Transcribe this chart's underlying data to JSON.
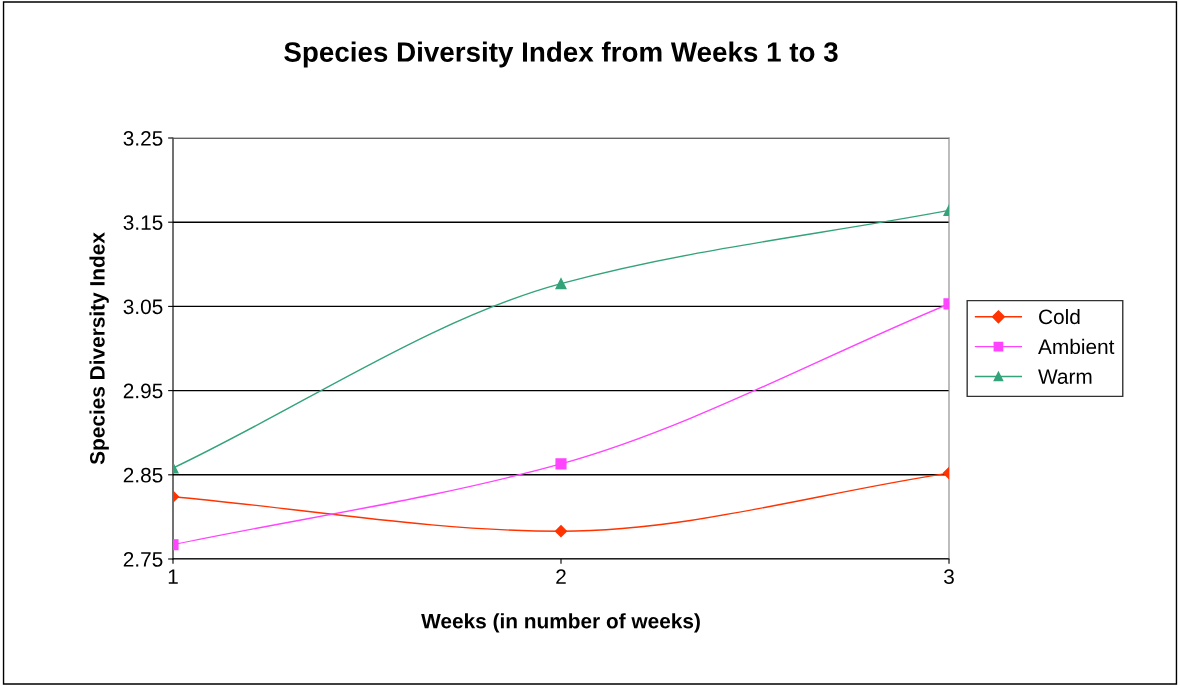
{
  "chart_data": {
    "type": "line",
    "title": "Species Diversity Index from Weeks 1 to 3",
    "xlabel": "Weeks (in number of weeks)",
    "ylabel": "Species Diversity Index",
    "x": [
      1,
      2,
      3
    ],
    "series": [
      {
        "name": "Cold",
        "color": "#ff3300",
        "marker": "diamond",
        "values": [
          2.824,
          2.783,
          2.852
        ]
      },
      {
        "name": "Ambient",
        "color": "#ff44ff",
        "marker": "square",
        "values": [
          2.767,
          2.863,
          3.053
        ]
      },
      {
        "name": "Warm",
        "color": "#33a37a",
        "marker": "triangle",
        "values": [
          2.858,
          3.077,
          3.164
        ]
      }
    ],
    "xlim": [
      1,
      3
    ],
    "xticks": [
      1,
      2,
      3
    ],
    "ylim": [
      2.75,
      3.25
    ],
    "yticks": [
      2.75,
      2.85,
      2.95,
      3.05,
      3.15,
      3.25
    ],
    "grid": "y",
    "legend": "right",
    "line_style": "solid"
  }
}
